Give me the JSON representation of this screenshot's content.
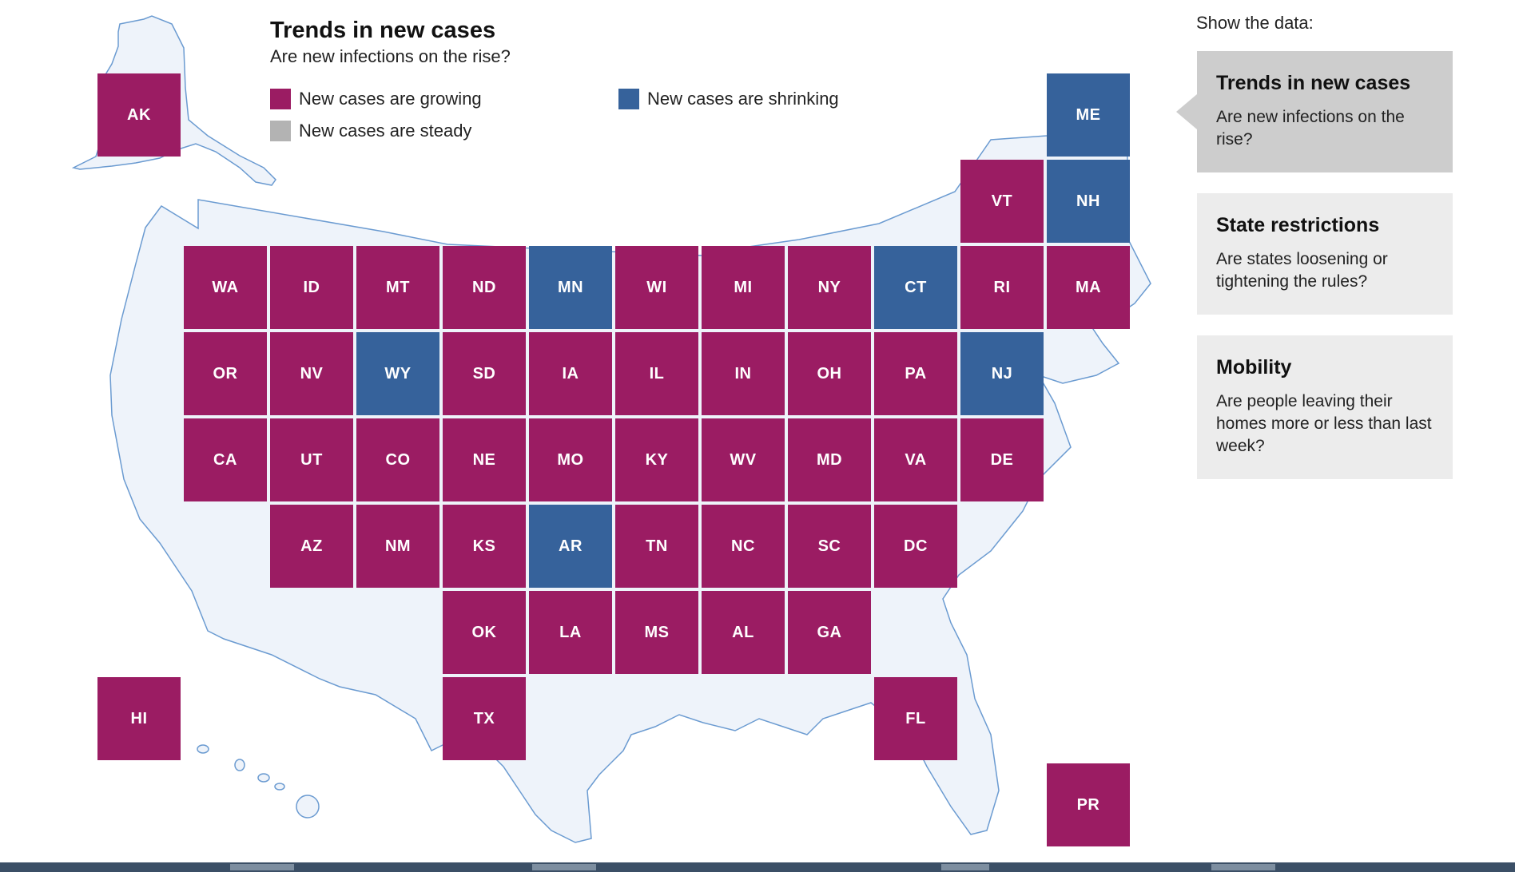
{
  "header": {
    "title": "Trends in new cases",
    "subtitle": "Are new infections on the rise?"
  },
  "legend": [
    {
      "key": "growing",
      "label": "New cases are growing",
      "color": "#9b1c63"
    },
    {
      "key": "shrinking",
      "label": "New cases are shrinking",
      "color": "#36629b"
    },
    {
      "key": "steady",
      "label": "New cases are steady",
      "color": "#b3b3b3"
    }
  ],
  "sidebar": {
    "label": "Show the data:",
    "cards": [
      {
        "title": "Trends in new cases",
        "desc": "Are new infections on the rise?",
        "active": true
      },
      {
        "title": "State restrictions",
        "desc": "Are states loosening or tightening the rules?",
        "active": false
      },
      {
        "title": "Mobility",
        "desc": "Are people leaving their homes more or less than last week?",
        "active": false
      }
    ]
  },
  "map": {
    "outline_fill": "#eef3fa",
    "outline_stroke": "#6b9bd1",
    "states": [
      {
        "abbr": "AK",
        "col": 0,
        "row": 0,
        "status": "growing"
      },
      {
        "abbr": "ME",
        "col": 11,
        "row": 0,
        "status": "shrinking"
      },
      {
        "abbr": "VT",
        "col": 10,
        "row": 1,
        "status": "growing"
      },
      {
        "abbr": "NH",
        "col": 11,
        "row": 1,
        "status": "shrinking"
      },
      {
        "abbr": "WA",
        "col": 1,
        "row": 2,
        "status": "growing"
      },
      {
        "abbr": "ID",
        "col": 2,
        "row": 2,
        "status": "growing"
      },
      {
        "abbr": "MT",
        "col": 3,
        "row": 2,
        "status": "growing"
      },
      {
        "abbr": "ND",
        "col": 4,
        "row": 2,
        "status": "growing"
      },
      {
        "abbr": "MN",
        "col": 5,
        "row": 2,
        "status": "shrinking"
      },
      {
        "abbr": "WI",
        "col": 6,
        "row": 2,
        "status": "growing"
      },
      {
        "abbr": "MI",
        "col": 7,
        "row": 2,
        "status": "growing"
      },
      {
        "abbr": "NY",
        "col": 8,
        "row": 2,
        "status": "growing"
      },
      {
        "abbr": "CT",
        "col": 9,
        "row": 2,
        "status": "shrinking"
      },
      {
        "abbr": "RI",
        "col": 10,
        "row": 2,
        "status": "growing"
      },
      {
        "abbr": "MA",
        "col": 11,
        "row": 2,
        "status": "growing"
      },
      {
        "abbr": "OR",
        "col": 1,
        "row": 3,
        "status": "growing"
      },
      {
        "abbr": "NV",
        "col": 2,
        "row": 3,
        "status": "growing"
      },
      {
        "abbr": "WY",
        "col": 3,
        "row": 3,
        "status": "shrinking"
      },
      {
        "abbr": "SD",
        "col": 4,
        "row": 3,
        "status": "growing"
      },
      {
        "abbr": "IA",
        "col": 5,
        "row": 3,
        "status": "growing"
      },
      {
        "abbr": "IL",
        "col": 6,
        "row": 3,
        "status": "growing"
      },
      {
        "abbr": "IN",
        "col": 7,
        "row": 3,
        "status": "growing"
      },
      {
        "abbr": "OH",
        "col": 8,
        "row": 3,
        "status": "growing"
      },
      {
        "abbr": "PA",
        "col": 9,
        "row": 3,
        "status": "growing"
      },
      {
        "abbr": "NJ",
        "col": 10,
        "row": 3,
        "status": "shrinking"
      },
      {
        "abbr": "CA",
        "col": 1,
        "row": 4,
        "status": "growing"
      },
      {
        "abbr": "UT",
        "col": 2,
        "row": 4,
        "status": "growing"
      },
      {
        "abbr": "CO",
        "col": 3,
        "row": 4,
        "status": "growing"
      },
      {
        "abbr": "NE",
        "col": 4,
        "row": 4,
        "status": "growing"
      },
      {
        "abbr": "MO",
        "col": 5,
        "row": 4,
        "status": "growing"
      },
      {
        "abbr": "KY",
        "col": 6,
        "row": 4,
        "status": "growing"
      },
      {
        "abbr": "WV",
        "col": 7,
        "row": 4,
        "status": "growing"
      },
      {
        "abbr": "MD",
        "col": 8,
        "row": 4,
        "status": "growing"
      },
      {
        "abbr": "VA",
        "col": 9,
        "row": 4,
        "status": "growing"
      },
      {
        "abbr": "DE",
        "col": 10,
        "row": 4,
        "status": "growing"
      },
      {
        "abbr": "AZ",
        "col": 2,
        "row": 5,
        "status": "growing"
      },
      {
        "abbr": "NM",
        "col": 3,
        "row": 5,
        "status": "growing"
      },
      {
        "abbr": "KS",
        "col": 4,
        "row": 5,
        "status": "growing"
      },
      {
        "abbr": "AR",
        "col": 5,
        "row": 5,
        "status": "shrinking"
      },
      {
        "abbr": "TN",
        "col": 6,
        "row": 5,
        "status": "growing"
      },
      {
        "abbr": "NC",
        "col": 7,
        "row": 5,
        "status": "growing"
      },
      {
        "abbr": "SC",
        "col": 8,
        "row": 5,
        "status": "growing"
      },
      {
        "abbr": "DC",
        "col": 9,
        "row": 5,
        "status": "growing"
      },
      {
        "abbr": "OK",
        "col": 4,
        "row": 6,
        "status": "growing"
      },
      {
        "abbr": "LA",
        "col": 5,
        "row": 6,
        "status": "growing"
      },
      {
        "abbr": "MS",
        "col": 6,
        "row": 6,
        "status": "growing"
      },
      {
        "abbr": "AL",
        "col": 7,
        "row": 6,
        "status": "growing"
      },
      {
        "abbr": "GA",
        "col": 8,
        "row": 6,
        "status": "growing"
      },
      {
        "abbr": "HI",
        "col": 0,
        "row": 7,
        "status": "growing"
      },
      {
        "abbr": "TX",
        "col": 4,
        "row": 7,
        "status": "growing"
      },
      {
        "abbr": "FL",
        "col": 9,
        "row": 7,
        "status": "growing"
      },
      {
        "abbr": "PR",
        "col": 11,
        "row": 8,
        "status": "growing"
      }
    ]
  }
}
